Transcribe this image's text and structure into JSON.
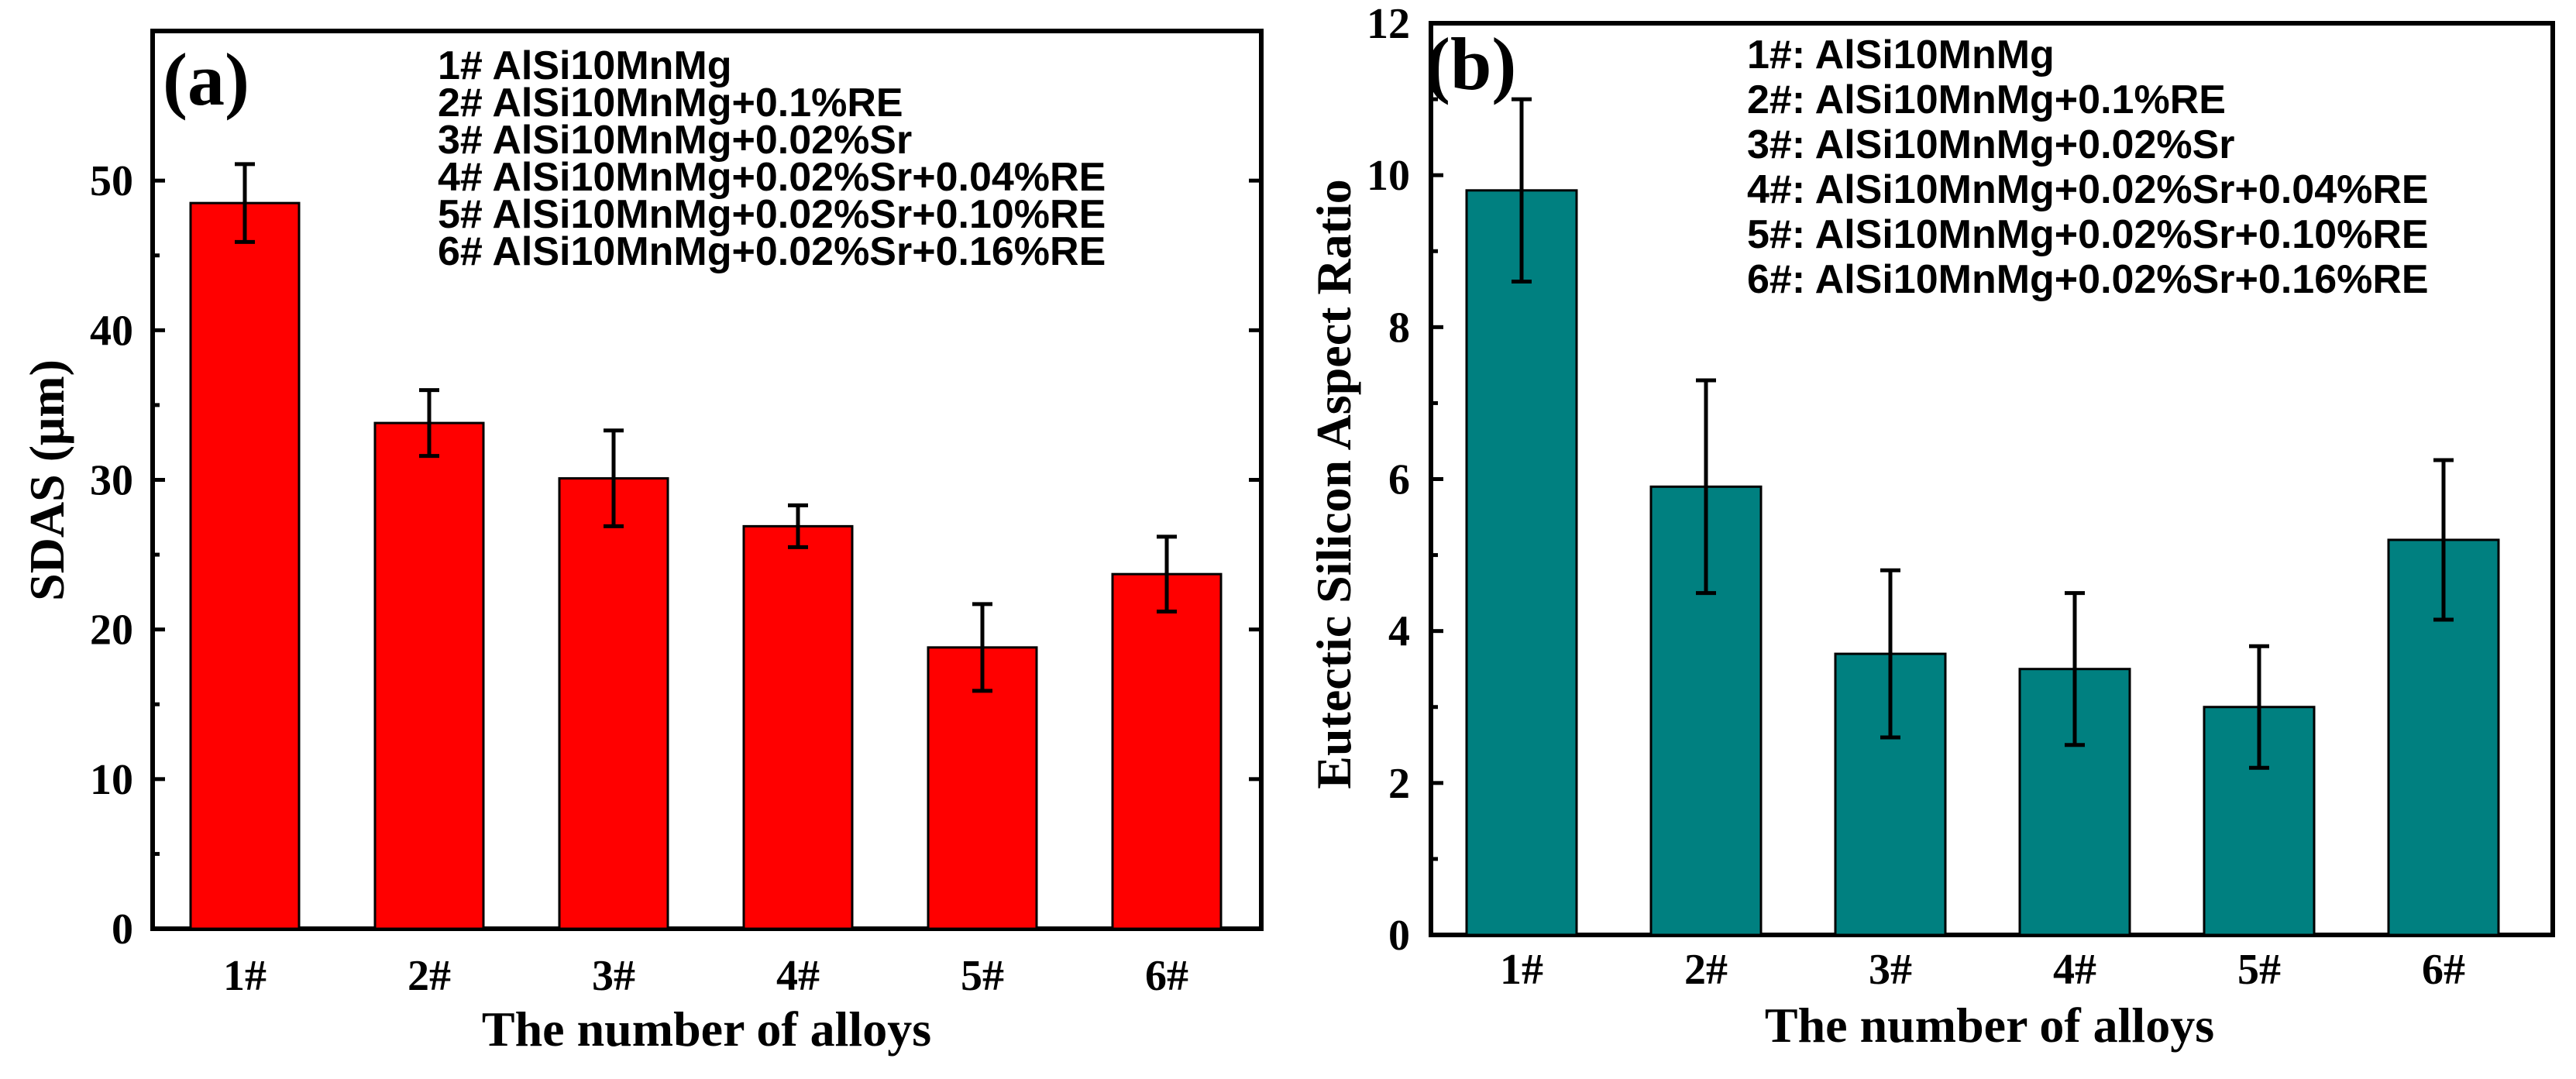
{
  "chart_data": [
    {
      "type": "bar",
      "panel_label": "(a)",
      "title": "",
      "xlabel": "The number of alloys",
      "ylabel": "SDAS (μm)",
      "categories": [
        "1#",
        "2#",
        "3#",
        "4#",
        "5#",
        "6#"
      ],
      "values": [
        48.5,
        33.8,
        30.1,
        26.9,
        18.8,
        23.7
      ],
      "errors": [
        2.6,
        2.2,
        3.2,
        1.4,
        2.9,
        2.5
      ],
      "bar_color": "#ff0000",
      "ylim": [
        0,
        60
      ],
      "yticks": [
        0,
        10,
        20,
        30,
        40,
        50
      ],
      "yticklabels": [
        "0",
        "10",
        "20",
        "30",
        "40",
        "50"
      ],
      "legend_placement": "top-right",
      "legend": [
        "1# AlSi10MnMg",
        "2# AlSi10MnMg+0.1%RE",
        "3# AlSi10MnMg+0.02%Sr",
        "4# AlSi10MnMg+0.02%Sr+0.04%RE",
        "5# AlSi10MnMg+0.02%Sr+0.10%RE",
        "6# AlSi10MnMg+0.02%Sr+0.16%RE"
      ]
    },
    {
      "type": "bar",
      "panel_label": "(b)",
      "title": "",
      "xlabel": "The number of alloys",
      "ylabel": "Eutectic Silicon Aspect Ratio",
      "categories": [
        "1#",
        "2#",
        "3#",
        "4#",
        "5#",
        "6#"
      ],
      "values": [
        9.8,
        5.9,
        3.7,
        3.5,
        3.0,
        5.2
      ],
      "errors": [
        1.2,
        1.4,
        1.1,
        1.0,
        0.8,
        1.05
      ],
      "bar_color": "#008080",
      "ylim": [
        0,
        12
      ],
      "yticks": [
        0,
        2,
        4,
        6,
        8,
        10,
        12
      ],
      "yticklabels": [
        "0",
        "2",
        "4",
        "6",
        "8",
        "10",
        "12"
      ],
      "legend_placement": "top-right",
      "legend": [
        "1#: AlSi10MnMg",
        "2#: AlSi10MnMg+0.1%RE",
        "3#: AlSi10MnMg+0.02%Sr",
        "4#: AlSi10MnMg+0.02%Sr+0.04%RE",
        "5#: AlSi10MnMg+0.02%Sr+0.10%RE",
        "6#: AlSi10MnMg+0.02%Sr+0.16%RE"
      ]
    }
  ]
}
